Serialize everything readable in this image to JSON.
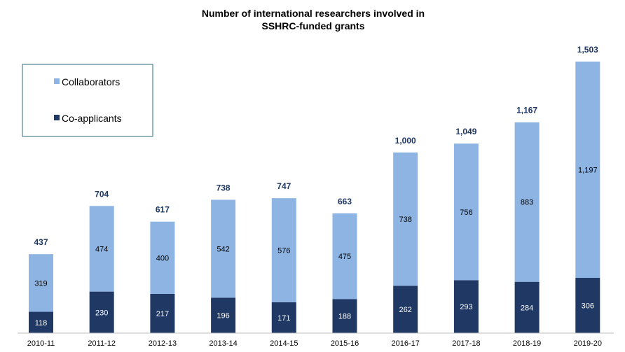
{
  "chart_data": {
    "type": "bar",
    "stacked": true,
    "title": "Number of international researchers involved in SSHRC-funded grants",
    "title_lines": [
      "Number of international researchers involved in",
      "SSHRC-funded grants"
    ],
    "categories": [
      "2010-11",
      "2011-12",
      "2012-13",
      "2013-14",
      "2014-15",
      "2015-16",
      "2016-17",
      "2017-18",
      "2018-19",
      "2019-20"
    ],
    "series": [
      {
        "name": "Co-applicants",
        "color": "#1f3864",
        "label_color": "#ffffff",
        "values": [
          118,
          230,
          217,
          196,
          171,
          188,
          262,
          293,
          284,
          306
        ]
      },
      {
        "name": "Collaborators",
        "color": "#8eb4e3",
        "label_color": "#000000",
        "values": [
          319,
          474,
          400,
          542,
          576,
          475,
          738,
          756,
          883,
          1197
        ]
      }
    ],
    "totals": [
      "437",
      "704",
      "617",
      "738",
      "747",
      "663",
      "1,000",
      "1,049",
      "1,167",
      "1,503"
    ],
    "segment_labels": {
      "Co-applicants": [
        "118",
        "230",
        "217",
        "196",
        "171",
        "188",
        "262",
        "293",
        "284",
        "306"
      ],
      "Collaborators": [
        "319",
        "474",
        "400",
        "542",
        "576",
        "475",
        "738",
        "756",
        "883",
        "1,197"
      ]
    },
    "ylim": [
      0,
      1700
    ],
    "grid": false,
    "legend": {
      "position": "top-left",
      "items": [
        "Collaborators",
        "Co-applicants"
      ]
    },
    "xlabel": "",
    "ylabel": ""
  }
}
